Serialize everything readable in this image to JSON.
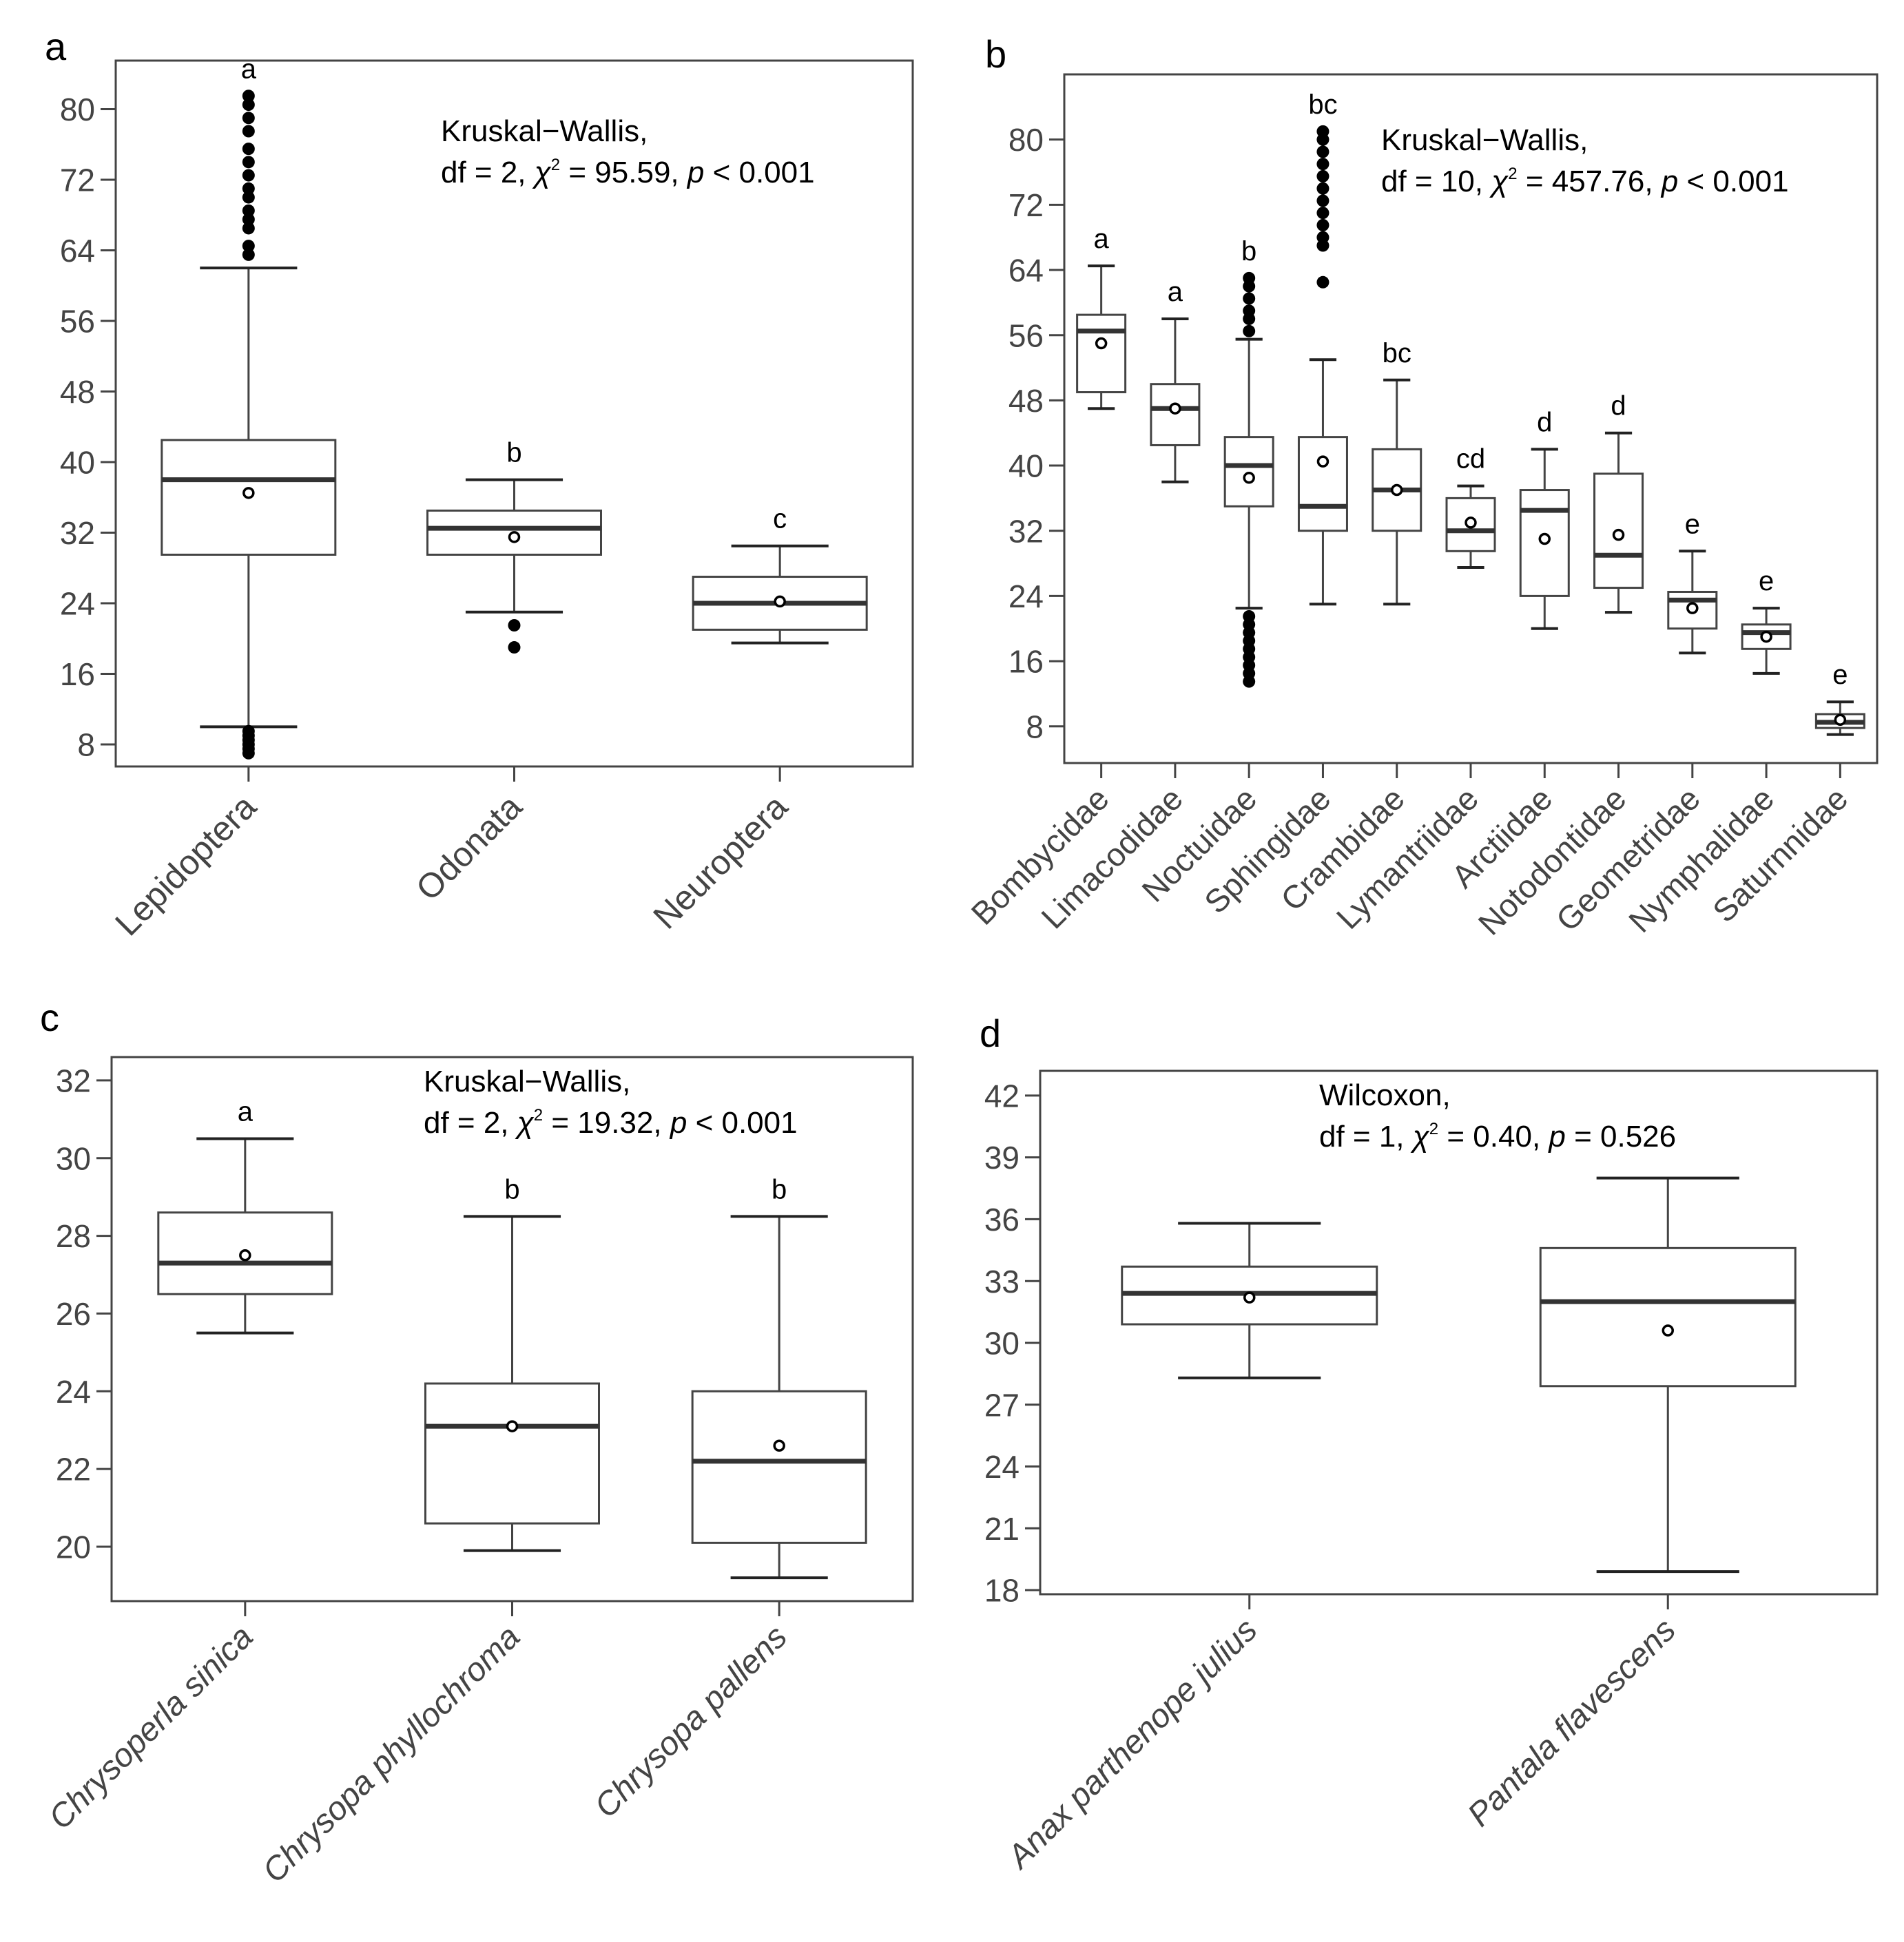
{
  "chart_data": [
    {
      "type": "box",
      "panel_label": "a",
      "test_name": "Kruskal−Wallis,",
      "stat_prefix": "df = 2, ",
      "stat_chi": "χ",
      "stat_chi_sup": "2",
      "stat_chi_value": " = 95.59, ",
      "stat_p": "p",
      "stat_p_value": " < 0.001",
      "ylim": [
        5.5,
        85.5
      ],
      "y_ticks": [
        8,
        16,
        24,
        32,
        40,
        48,
        56,
        64,
        72,
        80
      ],
      "label_italic": false,
      "categories": [
        "Lepidoptera",
        "Odonata",
        "Neuroptera"
      ],
      "boxes": [
        {
          "whisker_low": 10,
          "q1": 29.5,
          "median": 38,
          "q3": 42.5,
          "whisker_high": 62,
          "mean": 36.5,
          "group": "a",
          "outliers": [
            7,
            7.5,
            8,
            8.5,
            9,
            9.5,
            63.5,
            64.5,
            66.5,
            67.5,
            68.5,
            70,
            71,
            72.5,
            74,
            75.5,
            77.5,
            79,
            80.5,
            81.5
          ]
        },
        {
          "whisker_low": 23,
          "q1": 29.5,
          "median": 32.5,
          "q3": 34.5,
          "whisker_high": 38,
          "mean": 31.5,
          "group": "b",
          "outliers": [
            19,
            21.5
          ]
        },
        {
          "whisker_low": 19.5,
          "q1": 21,
          "median": 24,
          "q3": 27,
          "whisker_high": 30.5,
          "mean": 24.2,
          "group": "c",
          "outliers": []
        }
      ]
    },
    {
      "type": "box",
      "panel_label": "b",
      "test_name": "Kruskal−Wallis,",
      "stat_prefix": "df = 10, ",
      "stat_chi": "χ",
      "stat_chi_sup": "2",
      "stat_chi_value": " = 457.76, ",
      "stat_p": "p",
      "stat_p_value": " < 0.001",
      "ylim": [
        3.5,
        88
      ],
      "y_ticks": [
        8,
        16,
        24,
        32,
        40,
        48,
        56,
        64,
        72,
        80
      ],
      "label_italic": false,
      "categories": [
        "Bombycidae",
        "Limacodidae",
        "Noctuidae",
        "Sphingidae",
        "Crambidae",
        "Lymantriidae",
        "Arctiidae",
        "Notodontidae",
        "Geometridae",
        "Nymphalidae",
        "Saturnnidae"
      ],
      "boxes": [
        {
          "whisker_low": 47,
          "q1": 49,
          "median": 56.5,
          "q3": 58.5,
          "whisker_high": 64.5,
          "mean": 55,
          "group": "a",
          "outliers": []
        },
        {
          "whisker_low": 38,
          "q1": 42.5,
          "median": 47,
          "q3": 50,
          "whisker_high": 58,
          "mean": 47,
          "group": "a",
          "outliers": []
        },
        {
          "whisker_low": 22.5,
          "q1": 35,
          "median": 40,
          "q3": 43.5,
          "whisker_high": 55.5,
          "mean": 38.5,
          "group": "b",
          "outliers": [
            13.5,
            14.5,
            15.5,
            16.5,
            17.5,
            18.5,
            19.5,
            20.5,
            21.5,
            56.5,
            58,
            59,
            60.5,
            62,
            63
          ]
        },
        {
          "whisker_low": 23,
          "q1": 32,
          "median": 35,
          "q3": 43.5,
          "whisker_high": 53,
          "mean": 40.5,
          "group": "bc",
          "outliers": [
            62.5,
            67,
            68,
            69.5,
            71,
            72.5,
            74,
            75.5,
            77,
            78.5,
            80,
            81
          ]
        },
        {
          "whisker_low": 23,
          "q1": 32,
          "median": 37,
          "q3": 42,
          "whisker_high": 50.5,
          "mean": 37,
          "group": "bc",
          "outliers": []
        },
        {
          "whisker_low": 27.5,
          "q1": 29.5,
          "median": 32,
          "q3": 36,
          "whisker_high": 37.5,
          "mean": 33,
          "group": "cd",
          "outliers": []
        },
        {
          "whisker_low": 20,
          "q1": 24,
          "median": 34.5,
          "q3": 37,
          "whisker_high": 42,
          "mean": 31,
          "group": "d",
          "outliers": []
        },
        {
          "whisker_low": 22,
          "q1": 25,
          "median": 29,
          "q3": 39,
          "whisker_high": 44,
          "mean": 31.5,
          "group": "d",
          "outliers": []
        },
        {
          "whisker_low": 17,
          "q1": 20,
          "median": 23.5,
          "q3": 24.5,
          "whisker_high": 29.5,
          "mean": 22.5,
          "group": "e",
          "outliers": []
        },
        {
          "whisker_low": 14.5,
          "q1": 17.5,
          "median": 19.5,
          "q3": 20.5,
          "whisker_high": 22.5,
          "mean": 19,
          "group": "e",
          "outliers": []
        },
        {
          "whisker_low": 7,
          "q1": 7.8,
          "median": 8.5,
          "q3": 9.5,
          "whisker_high": 11,
          "mean": 8.8,
          "group": "e",
          "outliers": []
        }
      ]
    },
    {
      "type": "box",
      "panel_label": "c",
      "test_name": "Kruskal−Wallis,",
      "stat_prefix": "df = 2, ",
      "stat_chi": "χ",
      "stat_chi_sup": "2",
      "stat_chi_value": " = 19.32, ",
      "stat_p": "p",
      "stat_p_value": " < 0.001",
      "ylim": [
        18.6,
        32.6
      ],
      "y_ticks": [
        20,
        22,
        24,
        26,
        28,
        30,
        32
      ],
      "label_italic": true,
      "categories": [
        "Chrysoperla sinica",
        "Chrysopa phyllochroma",
        "Chrysopa pallens"
      ],
      "boxes": [
        {
          "whisker_low": 25.5,
          "q1": 26.5,
          "median": 27.3,
          "q3": 28.6,
          "whisker_high": 30.5,
          "mean": 27.5,
          "group": "a",
          "outliers": []
        },
        {
          "whisker_low": 19.9,
          "q1": 20.6,
          "median": 23.1,
          "q3": 24.2,
          "whisker_high": 28.5,
          "mean": 23.1,
          "group": "b",
          "outliers": []
        },
        {
          "whisker_low": 19.2,
          "q1": 20.1,
          "median": 22.2,
          "q3": 24,
          "whisker_high": 28.5,
          "mean": 22.6,
          "group": "b",
          "outliers": []
        }
      ]
    },
    {
      "type": "box",
      "panel_label": "d",
      "test_name": "Wilcoxon,",
      "stat_prefix": "df = 1, ",
      "stat_chi": "χ",
      "stat_chi_sup": "2",
      "stat_chi_value": " = 0.40, ",
      "stat_p": "p",
      "stat_p_value": " = 0.526",
      "ylim": [
        17.8,
        43.2
      ],
      "y_ticks": [
        18,
        21,
        24,
        27,
        30,
        33,
        36,
        39,
        42
      ],
      "label_italic": true,
      "categories": [
        "Anax parthenope julius",
        "Pantala flavescens"
      ],
      "boxes": [
        {
          "whisker_low": 28.3,
          "q1": 30.9,
          "median": 32.4,
          "q3": 33.7,
          "whisker_high": 35.8,
          "mean": 32.2,
          "group": "",
          "outliers": []
        },
        {
          "whisker_low": 18.9,
          "q1": 27.9,
          "median": 32,
          "q3": 34.6,
          "whisker_high": 38,
          "mean": 30.6,
          "group": "",
          "outliers": []
        }
      ]
    }
  ]
}
